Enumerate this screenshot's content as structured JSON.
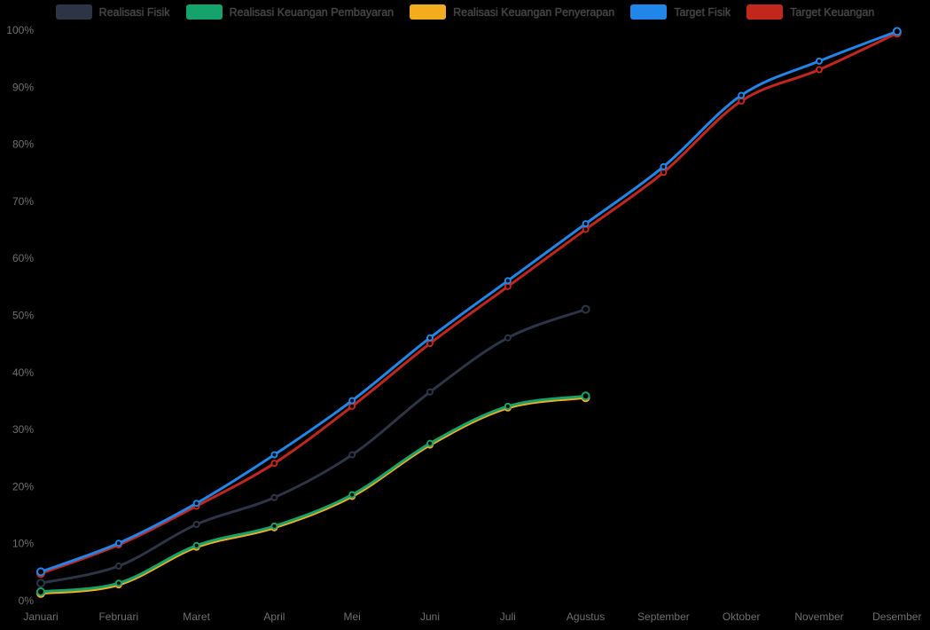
{
  "page": {
    "background_color": "#000000",
    "kind": "line-chart-widget"
  },
  "axes": {
    "y_tick_labels": [
      "0%",
      "10%",
      "20%",
      "30%",
      "40%",
      "50%",
      "60%",
      "70%",
      "80%",
      "90%",
      "100%"
    ],
    "y_tick_values": [
      0,
      10,
      20,
      30,
      40,
      50,
      60,
      70,
      80,
      90,
      100
    ],
    "label_color": "#6e6e6e"
  },
  "legend": {
    "position": "top",
    "label_color": "#454545"
  },
  "chart_data": {
    "type": "line",
    "title": "",
    "xlabel": "",
    "ylabel": "",
    "ylim": [
      0,
      100
    ],
    "ytick_step": 10,
    "ytick_format": "percent",
    "grid": false,
    "legend_position": "top",
    "categories": [
      "Januari",
      "Februari",
      "Maret",
      "April",
      "Mei",
      "Juni",
      "Juli",
      "Agustus",
      "September",
      "Oktober",
      "November",
      "Desember"
    ],
    "series": [
      {
        "name": "Realisasi Fisik",
        "slug": "realisasi-fisik",
        "color": "#2d3446",
        "values": [
          3,
          6,
          13.3,
          18,
          25.5,
          36.5,
          46,
          51,
          null,
          null,
          null,
          null
        ]
      },
      {
        "name": "Realisasi Keuangan Pembayaran",
        "slug": "realisasi-keuangan-pembayaran",
        "color": "#16a36b",
        "values": [
          1.5,
          3,
          9.6,
          13,
          18.5,
          27.5,
          34,
          35.8,
          null,
          null,
          null,
          null
        ]
      },
      {
        "name": "Realisasi Keuangan Penyerapan",
        "slug": "realisasi-keuangan-penyerapan",
        "color": "#f2ac1d",
        "values": [
          1.2,
          2.7,
          9.3,
          12.7,
          18.2,
          27.2,
          33.7,
          35.5,
          null,
          null,
          null,
          null
        ]
      },
      {
        "name": "Target Fisik",
        "slug": "target-fisik",
        "color": "#2186e8",
        "values": [
          5,
          10,
          17,
          25.5,
          35,
          46,
          56,
          66,
          76,
          88.5,
          94.5,
          99.7
        ]
      },
      {
        "name": "Target Keuangan",
        "slug": "target-keuangan",
        "color": "#c1271d",
        "values": [
          4.7,
          9.7,
          16.5,
          24,
          34,
          45,
          55,
          65,
          75,
          87.5,
          93,
          99.4
        ]
      }
    ],
    "draw_order": [
      2,
      1,
      0,
      4,
      3
    ]
  }
}
